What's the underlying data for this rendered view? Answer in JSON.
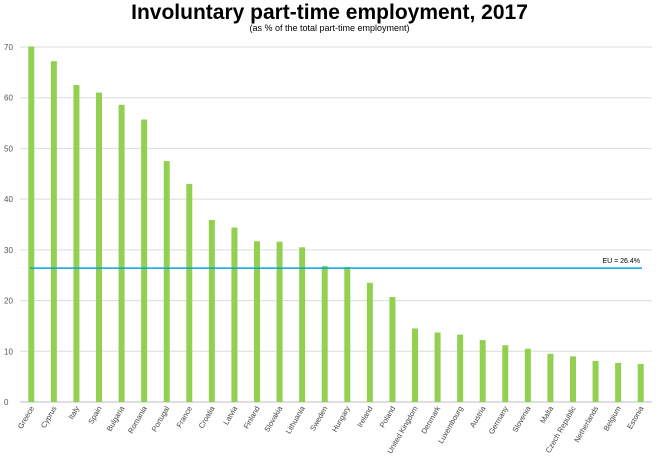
{
  "chart_data": {
    "type": "bar",
    "title": "Involuntary part-time employment, 2017",
    "subtitle": "(as % of the total part-time employment)",
    "xlabel": "",
    "ylabel": "",
    "ylim": [
      0,
      70
    ],
    "yticks": [
      0,
      10,
      20,
      30,
      40,
      50,
      60,
      70
    ],
    "grid": true,
    "categories": [
      "Greece",
      "Cyprus",
      "Italy",
      "Spain",
      "Bulgaria",
      "Romania",
      "Portugal",
      "France",
      "Croatia",
      "Latvia",
      "Finland",
      "Slovakia",
      "Lithuania",
      "Sweden",
      "Hungary",
      "Ireland",
      "Poland",
      "United Kingdom",
      "Denmark",
      "Luxembourg",
      "Austria",
      "Germany",
      "Slovenia",
      "Malta",
      "Czech Republic",
      "Netherlands",
      "Belgium",
      "Estonia"
    ],
    "values": [
      70.1,
      67.2,
      62.5,
      61.0,
      58.6,
      55.7,
      47.5,
      43.0,
      35.9,
      34.4,
      31.7,
      31.6,
      30.5,
      26.8,
      26.6,
      23.5,
      20.7,
      14.5,
      13.7,
      13.3,
      12.2,
      11.2,
      10.5,
      9.5,
      9.0,
      8.1,
      7.7,
      7.5
    ],
    "bar_color": "#92d050",
    "reference_line": {
      "value": 26.4,
      "label": "EU = 26.4%",
      "color": "#00a8e0"
    }
  }
}
